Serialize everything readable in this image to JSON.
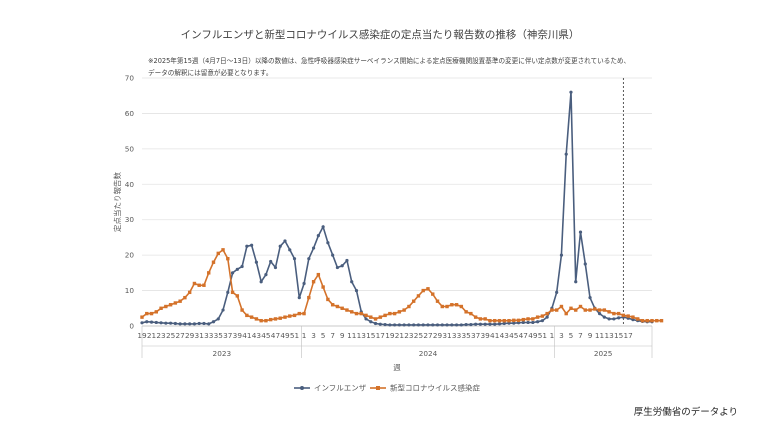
{
  "title": "インフルエンザと新型コロナウイルス感染症の定点当たり報告数の推移（神奈川県）",
  "note_line1": "※2025年第15週（4月7日～13日）以降の数値は、急性呼吸器感染症サーベイランス開始による定点医療機関設置基準の変更に伴い定点数が変更されているため、",
  "note_line2": "データの解釈には留意が必要となります。",
  "source": "厚生労働省のデータより",
  "chart_data": {
    "type": "line",
    "title": "インフルエンザと新型コロナウイルス感染症の定点当たり報告数の推移（神奈川県）",
    "xlabel": "週",
    "ylabel": "定点当たり報告数",
    "ylim": [
      0,
      70
    ],
    "yticks": [
      0,
      10,
      20,
      30,
      40,
      50,
      60,
      70
    ],
    "grid": true,
    "legend_position": "bottom",
    "week_tick_labels": [
      "19",
      "21",
      "23",
      "25",
      "27",
      "29",
      "31",
      "33",
      "35",
      "37",
      "39",
      "41",
      "43",
      "45",
      "47",
      "49",
      "51",
      "1",
      "3",
      "5",
      "7",
      "9",
      "11",
      "13",
      "15",
      "17",
      "19",
      "21",
      "23",
      "25",
      "27",
      "29",
      "31",
      "33",
      "35",
      "37",
      "39",
      "41",
      "43",
      "45",
      "47",
      "49",
      "51",
      "1",
      "3",
      "5",
      "7",
      "9",
      "11",
      "13",
      "15",
      "17"
    ],
    "year_labels": [
      "2023",
      "2024",
      "2025"
    ],
    "year_start_index": [
      0,
      34,
      87
    ],
    "marker_line_index": 101,
    "series": [
      {
        "name": "インフルエンザ",
        "color": "#4a5e7e",
        "values": [
          0.9,
          1.2,
          1.1,
          1.0,
          0.9,
          0.8,
          0.8,
          0.7,
          0.6,
          0.6,
          0.6,
          0.6,
          0.7,
          0.7,
          0.6,
          1.2,
          2.0,
          4.5,
          9.5,
          15.0,
          16.0,
          16.8,
          22.5,
          22.8,
          18.0,
          12.5,
          14.5,
          18.2,
          16.5,
          22.5,
          24.0,
          21.5,
          19.0,
          8.0,
          12.0,
          19.0,
          22.0,
          25.5,
          28.0,
          23.5,
          20.0,
          16.5,
          17.0,
          18.5,
          12.5,
          10.0,
          4.0,
          2.0,
          1.2,
          0.7,
          0.5,
          0.4,
          0.3,
          0.3,
          0.3,
          0.3,
          0.3,
          0.3,
          0.3,
          0.3,
          0.3,
          0.3,
          0.3,
          0.3,
          0.3,
          0.3,
          0.3,
          0.3,
          0.4,
          0.4,
          0.5,
          0.5,
          0.5,
          0.5,
          0.5,
          0.6,
          0.7,
          0.8,
          0.8,
          0.9,
          1.0,
          1.0,
          1.0,
          1.2,
          1.5,
          2.5,
          5.0,
          9.5,
          20.0,
          48.5,
          66.0,
          12.5,
          26.5,
          17.5,
          8.0,
          5.0,
          3.5,
          2.5,
          2.0,
          2.0,
          2.3,
          2.5,
          2.2,
          1.8,
          1.5,
          1.3,
          1.2,
          1.2
        ]
      },
      {
        "name": "新型コロナウイルス感染症",
        "color": "#d4722a",
        "values": [
          2.5,
          3.5,
          3.5,
          4.0,
          5.0,
          5.5,
          6.0,
          6.5,
          7.0,
          8.0,
          9.5,
          12.0,
          11.5,
          11.5,
          15.0,
          18.0,
          20.5,
          21.5,
          19.0,
          9.5,
          8.5,
          4.5,
          3.0,
          2.5,
          2.0,
          1.5,
          1.5,
          1.8,
          2.0,
          2.2,
          2.5,
          2.8,
          3.0,
          3.5,
          3.5,
          8.0,
          12.5,
          14.5,
          11.0,
          7.5,
          6.0,
          5.5,
          5.0,
          4.5,
          4.0,
          3.5,
          3.5,
          3.0,
          2.5,
          2.0,
          2.5,
          3.0,
          3.5,
          3.5,
          4.0,
          4.5,
          5.5,
          7.0,
          8.5,
          10.0,
          10.5,
          9.0,
          7.0,
          5.5,
          5.5,
          6.0,
          6.0,
          5.5,
          4.0,
          3.5,
          2.5,
          2.0,
          2.0,
          1.5,
          1.5,
          1.5,
          1.5,
          1.5,
          1.6,
          1.6,
          1.8,
          2.0,
          2.0,
          2.5,
          2.8,
          3.5,
          4.5,
          4.5,
          5.5,
          3.5,
          5.0,
          4.5,
          5.5,
          4.5,
          4.5,
          4.8,
          4.5,
          4.5,
          4.0,
          3.5,
          3.5,
          3.0,
          2.8,
          2.5,
          2.0,
          1.5,
          1.5,
          1.5,
          1.5,
          1.5
        ]
      }
    ]
  }
}
